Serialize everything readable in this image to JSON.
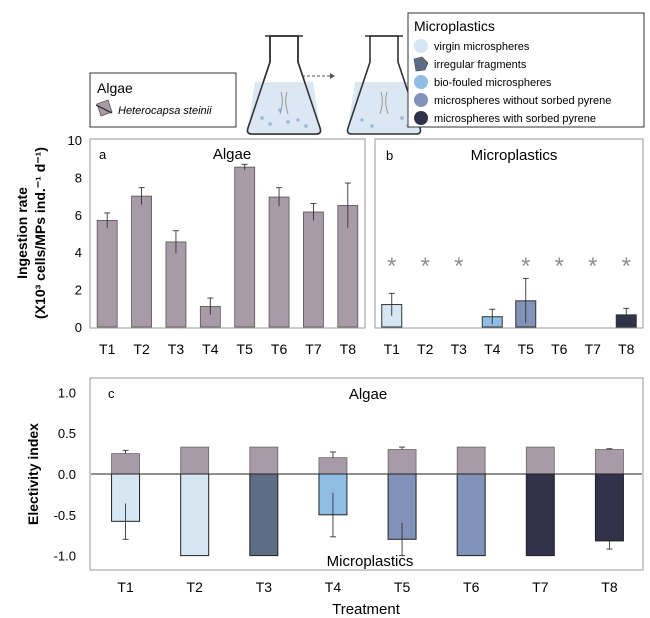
{
  "legend_algae": {
    "title": "Algae",
    "species": "Heterocapsa steinii",
    "color": "#a89aa6"
  },
  "legend_microplastics": {
    "title": "Microplastics",
    "items": [
      {
        "label": "virgin microspheres",
        "color": "#d6e6f3",
        "icon": "sphere"
      },
      {
        "label": "irregular fragments",
        "color": "#5d6d86",
        "icon": "fragment"
      },
      {
        "label": "bio-fouled microspheres",
        "color": "#8fbde3",
        "icon": "sphere"
      },
      {
        "label": "microspheres without sorbed pyrene",
        "color": "#8193b8",
        "icon": "sphere"
      },
      {
        "label": "microspheres with sorbed pyrene",
        "color": "#32324a",
        "icon": "sphere"
      }
    ]
  },
  "flask_icons": [
    "flask-left-icon",
    "flask-right-icon"
  ],
  "treatment_colors": [
    "#d6e6f3",
    "#d6e6f3",
    "#5d6d86",
    "#8fbde3",
    "#8193b8",
    "#8193b8",
    "#32324a",
    "#32324a"
  ],
  "algae_color": "#a89aa6",
  "chart_data": [
    {
      "id": "a",
      "type": "bar",
      "panel_label": "a",
      "title": "Algae",
      "ylabel_line1": "Ingestion rate",
      "ylabel_line2": "(X10³ cells/MPs ind.⁻¹ d⁻¹)",
      "categories": [
        "T1",
        "T2",
        "T3",
        "T4",
        "T5",
        "T6",
        "T7",
        "T8"
      ],
      "values": [
        5.7,
        7.0,
        4.55,
        1.1,
        8.55,
        6.95,
        6.15,
        6.5
      ],
      "errors": [
        0.4,
        0.45,
        0.6,
        0.45,
        0.15,
        0.5,
        0.45,
        1.2
      ],
      "ylim": [
        0,
        10
      ],
      "yticks": [
        "0",
        "2",
        "4",
        "6",
        "8",
        "10"
      ]
    },
    {
      "id": "b",
      "type": "bar",
      "panel_label": "b",
      "title": "Microplastics",
      "categories": [
        "T1",
        "T2",
        "T3",
        "T4",
        "T5",
        "T6",
        "T7",
        "T8"
      ],
      "values": [
        1.2,
        0,
        0,
        0.55,
        1.4,
        0,
        0,
        0.65
      ],
      "errors": [
        0.6,
        0,
        0,
        0.4,
        1.2,
        0,
        0,
        0.35
      ],
      "significance": [
        "*",
        "*",
        "*",
        "",
        "*",
        "*",
        "*",
        "*"
      ],
      "ylim": [
        0,
        10
      ]
    },
    {
      "id": "c",
      "type": "bar",
      "panel_label": "c",
      "title": "Algae",
      "bottom_label": "Microplastics",
      "ylabel": "Electivity index",
      "xlabel": "Treatment",
      "categories": [
        "T1",
        "T2",
        "T3",
        "T4",
        "T5",
        "T6",
        "T7",
        "T8"
      ],
      "algae_values": [
        0.25,
        0.33,
        0.33,
        0.2,
        0.3,
        0.33,
        0.33,
        0.3
      ],
      "algae_errors": [
        0.04,
        0,
        0,
        0.07,
        0.03,
        0,
        0,
        0.01
      ],
      "microplastic_values": [
        -0.58,
        -1.0,
        -1.0,
        -0.5,
        -0.8,
        -1.0,
        -1.0,
        -0.82
      ],
      "microplastic_errors": [
        0.22,
        0,
        0,
        0.27,
        0.2,
        0,
        0,
        0.1
      ],
      "ylim": [
        -1.25,
        1.25
      ],
      "yticks": [
        "-1.0",
        "-0.5",
        "0.0",
        "0.5",
        "1.0"
      ]
    }
  ]
}
